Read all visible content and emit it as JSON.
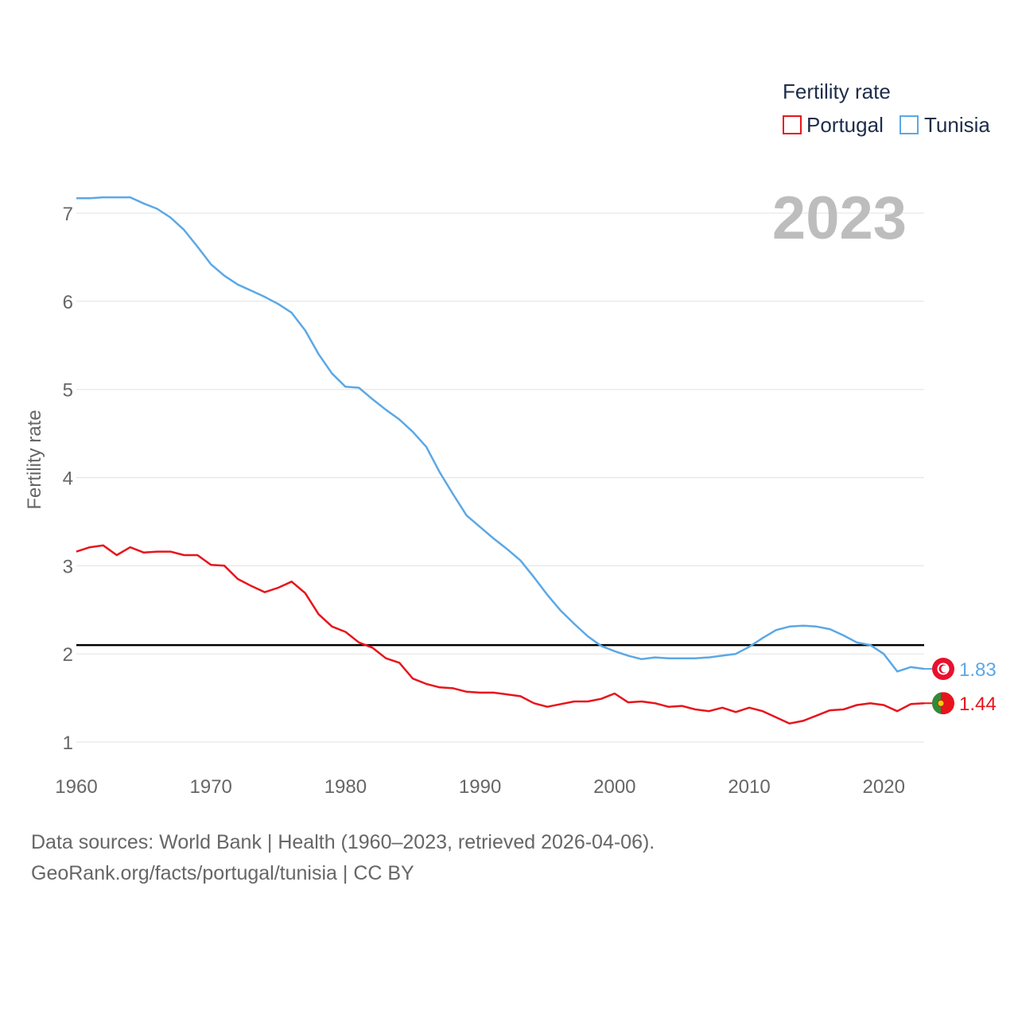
{
  "chart_data": {
    "type": "line",
    "title": "",
    "xlabel": "",
    "ylabel": "Fertility rate",
    "xlim": [
      1960,
      2023
    ],
    "ylim": [
      0.7,
      7.3
    ],
    "xticks": [
      1960,
      1970,
      1980,
      1990,
      2000,
      2010,
      2020
    ],
    "yticks": [
      1,
      2,
      3,
      4,
      5,
      6,
      7
    ],
    "legend_title": "Fertility rate",
    "legend_position": "top-right",
    "year_label": "2023",
    "reference_line": {
      "value": 2.1,
      "color": "#000000"
    },
    "series": [
      {
        "name": "Portugal",
        "color": "#e8141b",
        "end_label": "1.44",
        "x": [
          1960,
          1961,
          1962,
          1963,
          1964,
          1965,
          1966,
          1967,
          1968,
          1969,
          1970,
          1971,
          1972,
          1973,
          1974,
          1975,
          1976,
          1977,
          1978,
          1979,
          1980,
          1981,
          1982,
          1983,
          1984,
          1985,
          1986,
          1987,
          1988,
          1989,
          1990,
          1991,
          1992,
          1993,
          1994,
          1995,
          1996,
          1997,
          1998,
          1999,
          2000,
          2001,
          2002,
          2003,
          2004,
          2005,
          2006,
          2007,
          2008,
          2009,
          2010,
          2011,
          2012,
          2013,
          2014,
          2015,
          2016,
          2017,
          2018,
          2019,
          2020,
          2021,
          2022,
          2023
        ],
        "values": [
          3.16,
          3.21,
          3.23,
          3.12,
          3.21,
          3.15,
          3.16,
          3.16,
          3.12,
          3.12,
          3.01,
          3.0,
          2.85,
          2.77,
          2.7,
          2.75,
          2.82,
          2.69,
          2.45,
          2.31,
          2.25,
          2.13,
          2.07,
          1.95,
          1.9,
          1.72,
          1.66,
          1.62,
          1.61,
          1.57,
          1.56,
          1.56,
          1.54,
          1.52,
          1.44,
          1.4,
          1.43,
          1.46,
          1.46,
          1.49,
          1.55,
          1.45,
          1.46,
          1.44,
          1.4,
          1.41,
          1.37,
          1.35,
          1.39,
          1.34,
          1.39,
          1.35,
          1.28,
          1.21,
          1.24,
          1.3,
          1.36,
          1.37,
          1.42,
          1.44,
          1.42,
          1.35,
          1.43,
          1.44
        ]
      },
      {
        "name": "Tunisia",
        "color": "#5ba8e6",
        "end_label": "1.83",
        "x": [
          1960,
          1961,
          1962,
          1963,
          1964,
          1965,
          1966,
          1967,
          1968,
          1969,
          1970,
          1971,
          1972,
          1973,
          1974,
          1975,
          1976,
          1977,
          1978,
          1979,
          1980,
          1981,
          1982,
          1983,
          1984,
          1985,
          1986,
          1987,
          1988,
          1989,
          1990,
          1991,
          1992,
          1993,
          1994,
          1995,
          1996,
          1997,
          1998,
          1999,
          2000,
          2001,
          2002,
          2003,
          2004,
          2005,
          2006,
          2007,
          2008,
          2009,
          2010,
          2011,
          2012,
          2013,
          2014,
          2015,
          2016,
          2017,
          2018,
          2019,
          2020,
          2021,
          2022,
          2023
        ],
        "values": [
          7.17,
          7.17,
          7.18,
          7.18,
          7.18,
          7.11,
          7.05,
          6.95,
          6.81,
          6.62,
          6.42,
          6.29,
          6.19,
          6.12,
          6.05,
          5.97,
          5.87,
          5.67,
          5.4,
          5.18,
          5.03,
          5.02,
          4.89,
          4.77,
          4.66,
          4.52,
          4.35,
          4.06,
          3.81,
          3.57,
          3.44,
          3.31,
          3.19,
          3.06,
          2.87,
          2.67,
          2.49,
          2.34,
          2.2,
          2.09,
          2.03,
          1.98,
          1.94,
          1.96,
          1.95,
          1.95,
          1.95,
          1.96,
          1.98,
          2.0,
          2.08,
          2.18,
          2.27,
          2.31,
          2.32,
          2.31,
          2.28,
          2.21,
          2.13,
          2.1,
          2.0,
          1.8,
          1.85,
          1.83
        ]
      }
    ]
  },
  "footer": {
    "line1": "Data sources: World Bank | Health (1960–2023, retrieved 2026-04-06).",
    "line2": "GeoRank.org/facts/portugal/tunisia | CC BY"
  }
}
